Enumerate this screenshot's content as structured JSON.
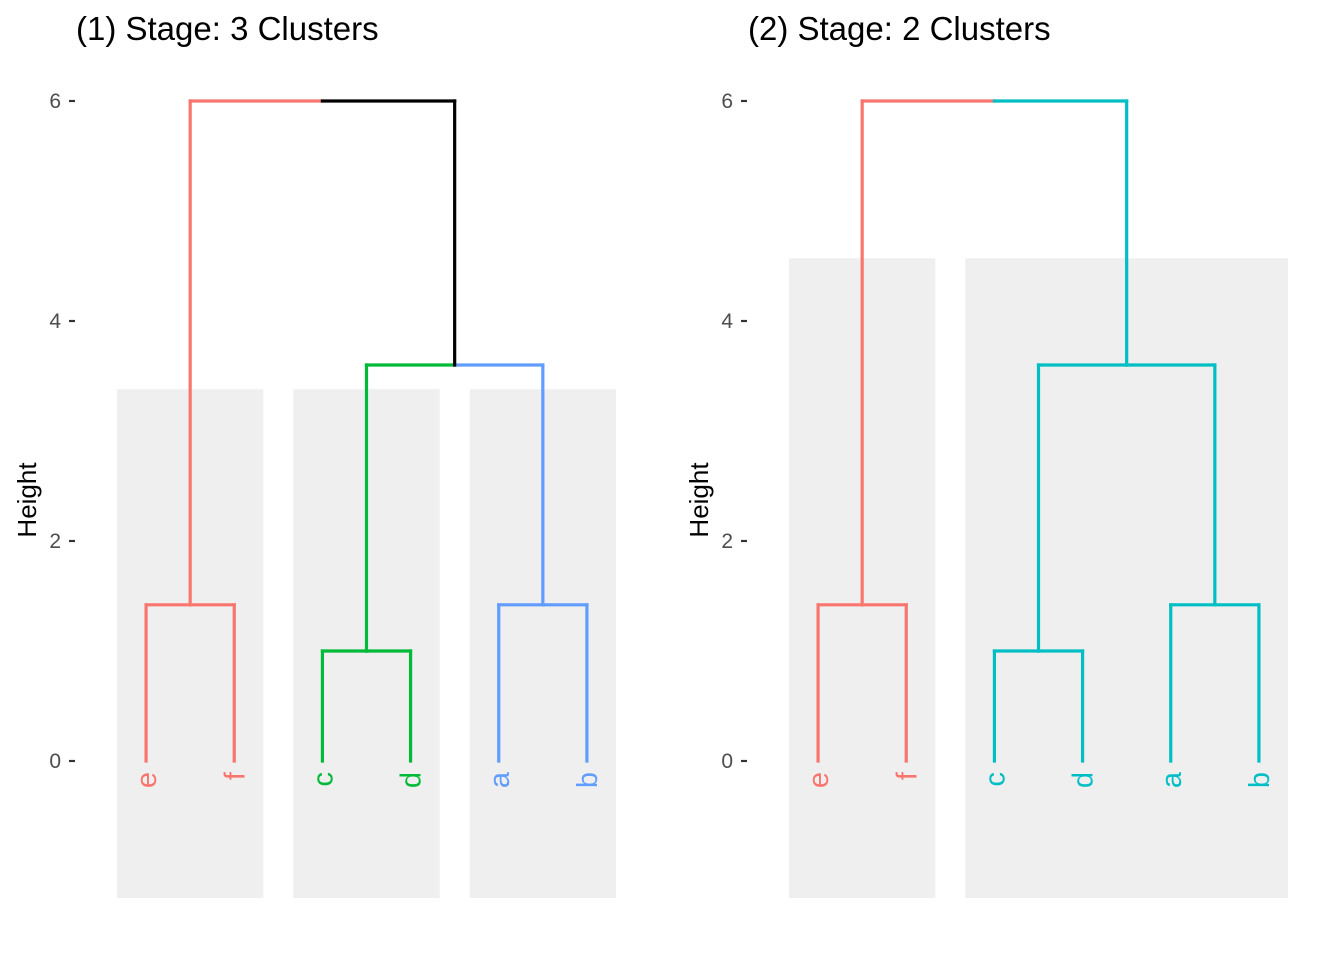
{
  "chart_data": [
    {
      "type": "dendrogram",
      "title": "(1) Stage: 3 Clusters",
      "ylabel": "Height",
      "ylim": [
        -1.24,
        6.5
      ],
      "yticks": [
        0,
        2,
        4,
        6
      ],
      "ytick_labels": [
        "0",
        "2",
        "4",
        "6"
      ],
      "leaves": [
        "e",
        "f",
        "c",
        "d",
        "a",
        "b"
      ],
      "colors": {
        "red": "#F8766D",
        "green": "#00BA38",
        "blue": "#619CFF",
        "black": "#000000"
      },
      "merges": [
        {
          "left": "e",
          "right": "f",
          "height": 1.42,
          "color": "red"
        },
        {
          "left": "c",
          "right": "d",
          "height": 1.0,
          "color": "green"
        },
        {
          "left": "a",
          "right": "b",
          "height": 1.42,
          "color": "blue"
        },
        {
          "left": "(c,d)",
          "right": "(a,b)",
          "height": 3.6,
          "left_color": "green",
          "right_color": "blue"
        },
        {
          "left": "(e,f)",
          "right": "(c,d,a,b)",
          "height": 6.0,
          "left_color": "red",
          "right_color": "black"
        }
      ],
      "clusters": [
        {
          "leaves": [
            "e",
            "f"
          ],
          "color": "red",
          "box_top": 3.38
        },
        {
          "leaves": [
            "c",
            "d"
          ],
          "color": "green",
          "box_top": 3.38
        },
        {
          "leaves": [
            "a",
            "b"
          ],
          "color": "blue",
          "box_top": 3.38
        }
      ]
    },
    {
      "type": "dendrogram",
      "title": "(2) Stage: 2 Clusters",
      "ylabel": "Height",
      "ylim": [
        -1.24,
        6.5
      ],
      "yticks": [
        0,
        2,
        4,
        6
      ],
      "ytick_labels": [
        "0",
        "2",
        "4",
        "6"
      ],
      "leaves": [
        "e",
        "f",
        "c",
        "d",
        "a",
        "b"
      ],
      "colors": {
        "red": "#F8766D",
        "teal": "#00BFC4"
      },
      "merges": [
        {
          "left": "e",
          "right": "f",
          "height": 1.42,
          "color": "red"
        },
        {
          "left": "c",
          "right": "d",
          "height": 1.0,
          "color": "teal"
        },
        {
          "left": "a",
          "right": "b",
          "height": 1.42,
          "color": "teal"
        },
        {
          "left": "(c,d)",
          "right": "(a,b)",
          "height": 3.6,
          "left_color": "teal",
          "right_color": "teal"
        },
        {
          "left": "(e,f)",
          "right": "(c,d,a,b)",
          "height": 6.0,
          "left_color": "red",
          "right_color": "teal"
        }
      ],
      "clusters": [
        {
          "leaves": [
            "e",
            "f"
          ],
          "color": "red",
          "box_top": 4.57
        },
        {
          "leaves": [
            "c",
            "d",
            "a",
            "b"
          ],
          "color": "teal",
          "box_top": 4.57
        }
      ]
    }
  ]
}
